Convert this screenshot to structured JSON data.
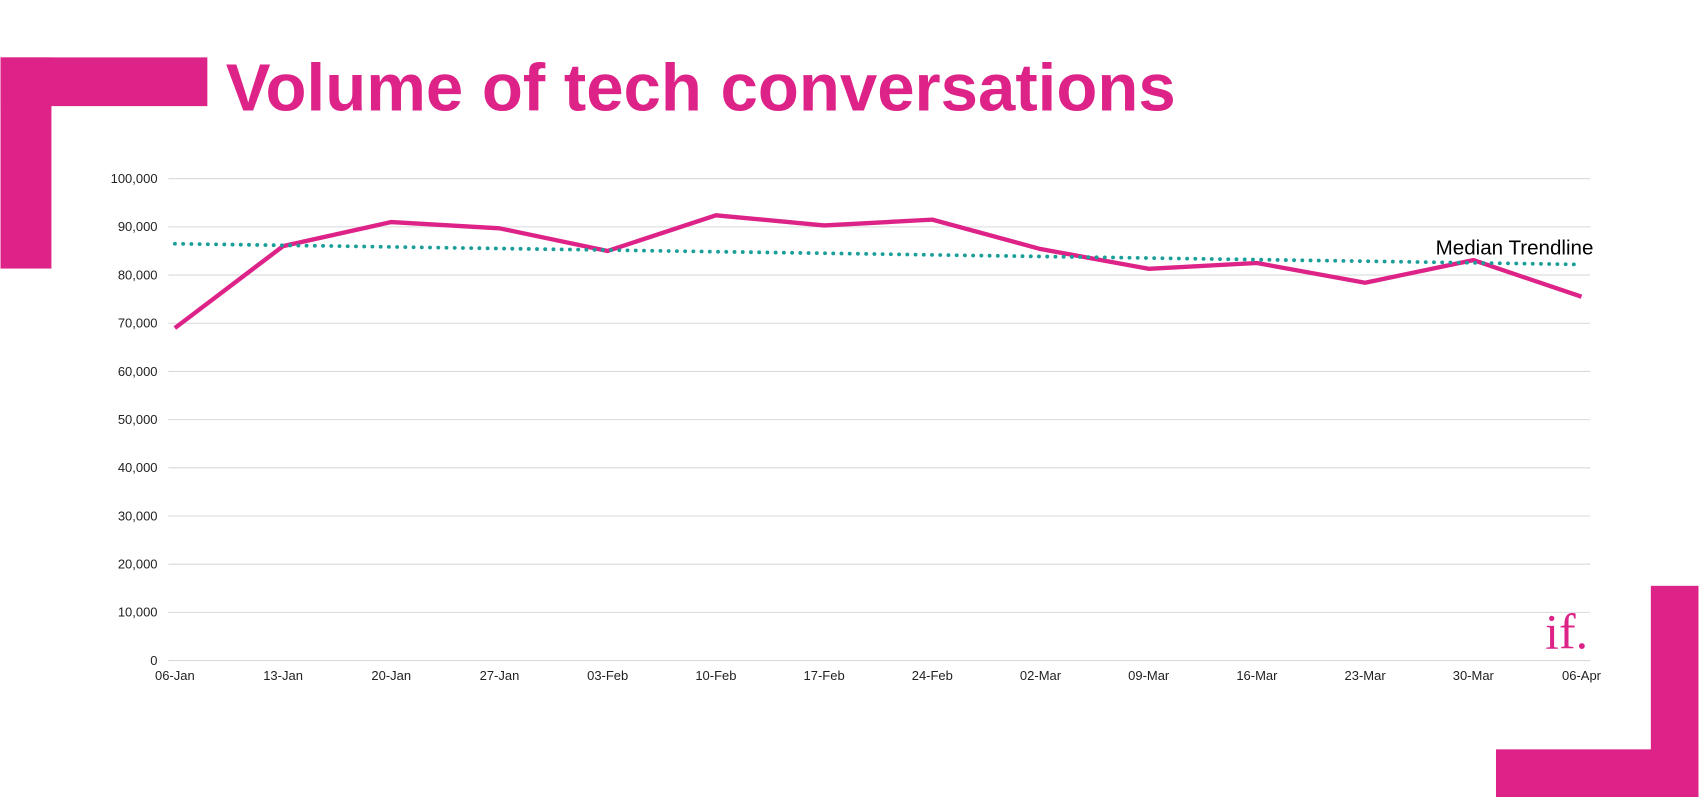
{
  "chart_data": {
    "type": "line",
    "title": "Volume of tech conversations",
    "logo": "if.",
    "categories": [
      "06-Jan",
      "13-Jan",
      "20-Jan",
      "27-Jan",
      "03-Feb",
      "10-Feb",
      "17-Feb",
      "24-Feb",
      "02-Mar",
      "09-Mar",
      "16-Mar",
      "23-Mar",
      "30-Mar",
      "06-Apr"
    ],
    "series": [
      {
        "color": "#dd2288",
        "values": [
          69000,
          86000,
          91000,
          89700,
          85000,
          92400,
          90300,
          91500,
          85400,
          81300,
          82500,
          78400,
          83100,
          75500
        ]
      },
      {
        "name": "Median Trendline",
        "color": "#1a9e9a",
        "dotted": true,
        "values": [
          86500,
          86170,
          85840,
          85510,
          85180,
          84850,
          84520,
          84190,
          83860,
          83530,
          83200,
          82870,
          82540,
          82200
        ]
      }
    ],
    "ylim": [
      0,
      100000
    ],
    "yticks": [
      0,
      {
        "value": 10000,
        "label": "10,000"
      },
      {
        "value": 20000,
        "label": "20,000"
      },
      {
        "value": 30000,
        "label": "30,000"
      },
      {
        "value": 40000,
        "label": "40,000"
      },
      {
        "value": 50000,
        "label": "50,000"
      },
      {
        "value": 60000,
        "label": "60,000"
      },
      {
        "value": 70000,
        "label": "70,000"
      },
      {
        "value": 80000,
        "label": "80,000"
      },
      {
        "value": 90000,
        "label": "90,000"
      },
      {
        "value": 100000,
        "label": "100,000"
      }
    ],
    "grid": true
  }
}
